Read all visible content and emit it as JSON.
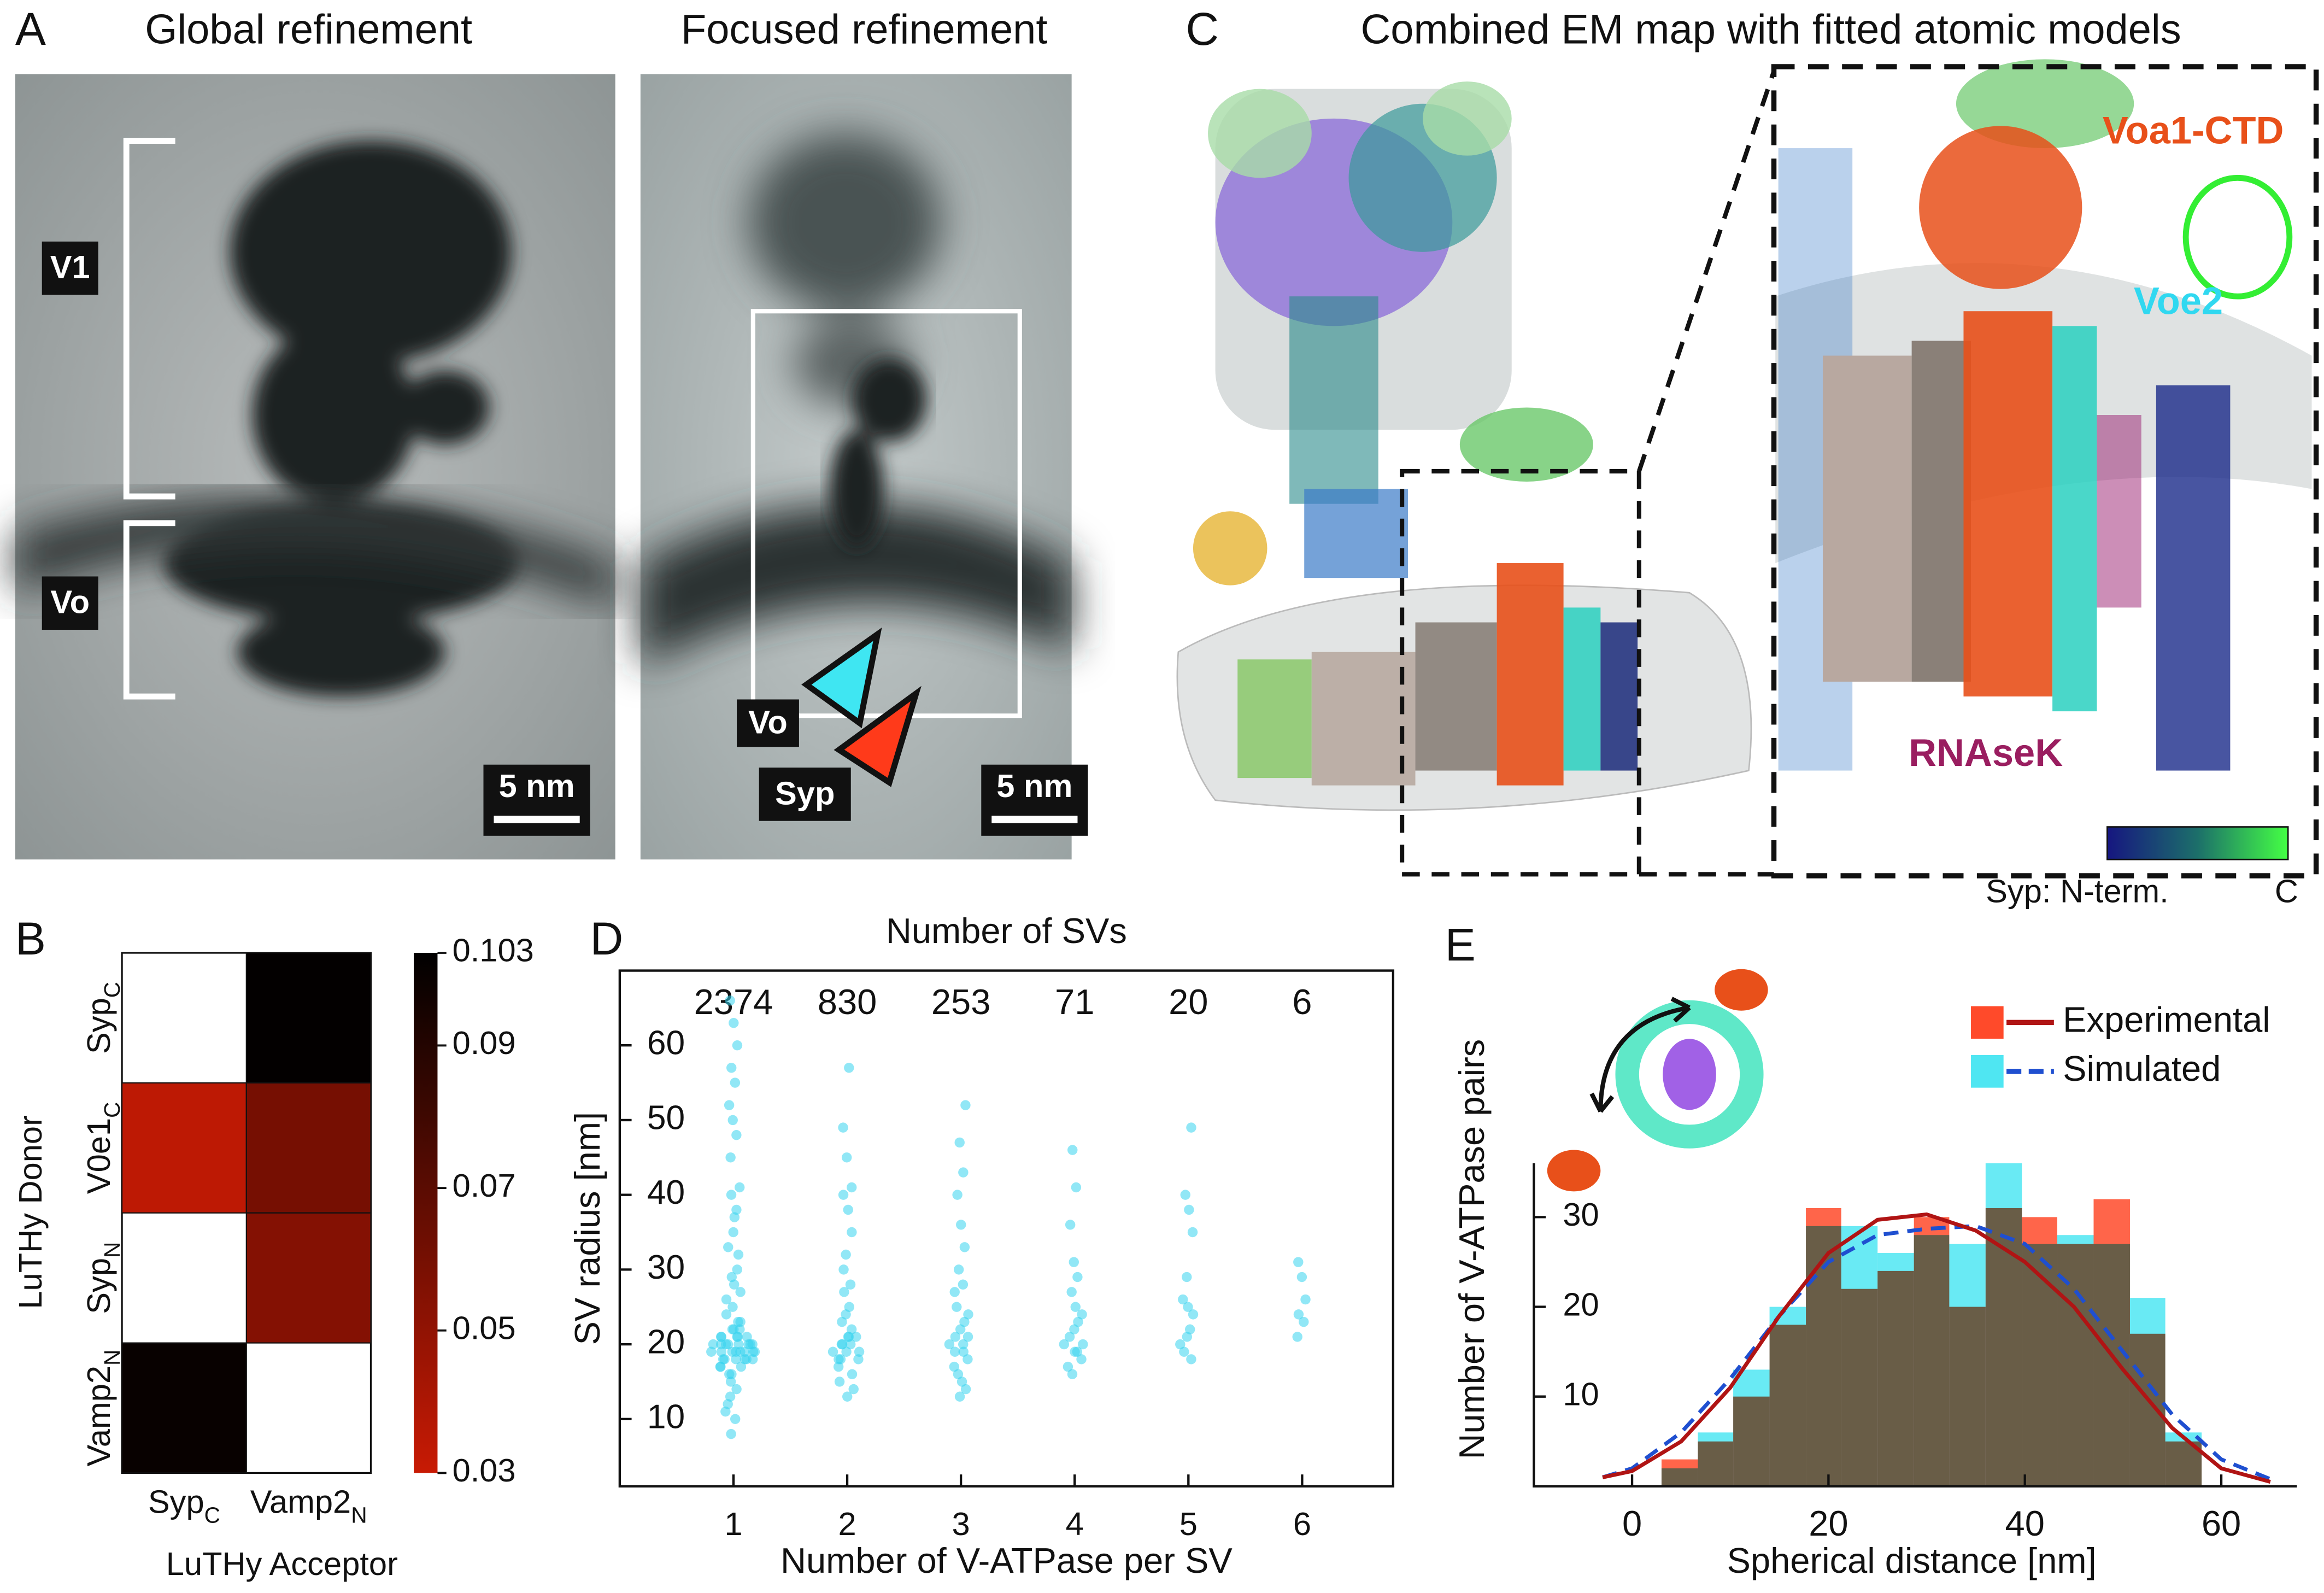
{
  "panels": {
    "A": {
      "label": "A",
      "titles": [
        "Global refinement",
        "Focused refinement"
      ],
      "labels": [
        "V1",
        "Vo",
        "Vo",
        "Syp"
      ],
      "scale_bars": [
        "5 nm",
        "5 nm"
      ]
    },
    "C": {
      "label": "C",
      "title": "Combined EM map with fitted atomic models",
      "labels": [
        "Voa1-CTD",
        "Voe2",
        "RNAseK"
      ],
      "colorbar": {
        "label": "Syp: N-term.",
        "end": "C"
      }
    }
  },
  "chart_data": [
    {
      "type": "heatmap",
      "panel": "B",
      "xlabel": "LuTHy Acceptor",
      "ylabel": "LuTHy Donor",
      "columns": [
        {
          "text": "Syp",
          "sub": "C"
        },
        {
          "text": "Vamp2",
          "sub": "N"
        }
      ],
      "rows": [
        {
          "text": "Syp",
          "sub": "C"
        },
        {
          "text": "V0e1",
          "sub": "C"
        },
        {
          "text": "Syp",
          "sub": "N"
        },
        {
          "text": "Vamp2",
          "sub": "N"
        }
      ],
      "values": [
        [
          null,
          0.102
        ],
        [
          0.034,
          0.06
        ],
        [
          null,
          0.055
        ],
        [
          0.1,
          null
        ]
      ],
      "colormap": [
        "#c81a04",
        "#000000"
      ],
      "clim": [
        0.03,
        0.103
      ],
      "cticks": [
        0.03,
        0.05,
        0.07,
        0.09,
        0.103
      ]
    },
    {
      "type": "strip",
      "panel": "D",
      "title": "Number of SVs",
      "xlabel": "Number of V-ATPase per SV",
      "ylabel": "SV radius [nm]",
      "color": "#36d3ee",
      "xlim": [
        0,
        6.8
      ],
      "ylim": [
        1,
        70
      ],
      "xticks": [
        1,
        2,
        3,
        4,
        5,
        6
      ],
      "yticks": [
        10,
        20,
        30,
        40,
        50,
        60
      ],
      "groups": [
        {
          "x": 1,
          "count": 2374,
          "values": [
            19,
            20,
            18,
            21,
            19,
            17,
            22,
            20,
            19,
            18,
            21,
            23,
            16,
            20,
            19,
            18,
            20,
            22,
            24,
            17,
            15,
            19,
            21,
            20,
            18,
            25,
            26,
            14,
            13,
            27,
            28,
            12,
            30,
            29,
            11,
            10,
            8,
            32,
            35,
            33,
            38,
            40,
            41,
            37,
            45,
            48,
            50,
            52,
            55,
            57,
            60,
            63,
            66,
            19,
            20,
            18,
            21,
            19,
            20,
            22,
            17,
            23,
            16,
            20,
            19,
            21,
            18
          ]
        },
        {
          "x": 2,
          "count": 830,
          "values": [
            19,
            20,
            18,
            21,
            19,
            17,
            22,
            20,
            18,
            21,
            23,
            16,
            24,
            15,
            25,
            27,
            14,
            13,
            30,
            28,
            32,
            35,
            38,
            40,
            41,
            45,
            49,
            57,
            20,
            19,
            21,
            18
          ]
        },
        {
          "x": 3,
          "count": 253,
          "values": [
            20,
            19,
            21,
            18,
            22,
            17,
            23,
            16,
            24,
            15,
            25,
            14,
            13,
            27,
            28,
            30,
            33,
            36,
            40,
            43,
            47,
            52,
            20,
            19,
            21
          ]
        },
        {
          "x": 4,
          "count": 71,
          "values": [
            20,
            19,
            21,
            18,
            22,
            17,
            23,
            16,
            24,
            25,
            27,
            29,
            31,
            36,
            41,
            46,
            20,
            19
          ]
        },
        {
          "x": 5,
          "count": 20,
          "values": [
            20,
            22,
            19,
            24,
            25,
            26,
            18,
            29,
            35,
            38,
            40,
            49,
            21
          ]
        },
        {
          "x": 6,
          "count": 6,
          "values": [
            21,
            23,
            24,
            26,
            29,
            31
          ]
        }
      ]
    },
    {
      "type": "histogram",
      "panel": "E",
      "xlabel": "Spherical distance [nm]",
      "ylabel": "Number of V-ATPase pairs",
      "xlim": [
        -10,
        67.7
      ],
      "ylim": [
        0,
        36
      ],
      "xticks": [
        0,
        20,
        40,
        60
      ],
      "yticks": [
        10,
        20,
        30
      ],
      "legend": "upper right",
      "bins": [
        3,
        6.7,
        10.3,
        14,
        17.7,
        21.3,
        25,
        28.7,
        32.3,
        36,
        39.7,
        43.3,
        47,
        50.7,
        54.3,
        58
      ],
      "series": [
        {
          "name": "Simulated",
          "color": "#4fe6f2",
          "counts": [
            2,
            6,
            13,
            20,
            29,
            29,
            26,
            28,
            27,
            36,
            27,
            28,
            27,
            21,
            6
          ],
          "line_color": "#1f4fd0",
          "line_style": "dashed",
          "line_x": [
            -3,
            0,
            5,
            10,
            15,
            20,
            25,
            30,
            35,
            40,
            45,
            50,
            55,
            60,
            65
          ],
          "line_y": [
            1,
            2,
            6,
            12,
            19,
            25,
            28,
            28.7,
            29,
            27,
            22,
            15,
            8,
            3,
            0.8
          ]
        },
        {
          "name": "Experimental",
          "color": "#ff4a2a",
          "counts": [
            3,
            5,
            10,
            18,
            31,
            22,
            24,
            30,
            20,
            31,
            30,
            27,
            32,
            17,
            5
          ],
          "line_color": "#b01414",
          "line_style": "solid",
          "line_x": [
            -3,
            0,
            5,
            10,
            15,
            20,
            25,
            30,
            35,
            40,
            45,
            50,
            55,
            60,
            65
          ],
          "line_y": [
            1,
            1.7,
            5,
            11,
            19,
            26,
            29.7,
            30.3,
            28.5,
            25,
            20,
            13,
            6.5,
            2,
            0.5
          ]
        }
      ]
    }
  ]
}
